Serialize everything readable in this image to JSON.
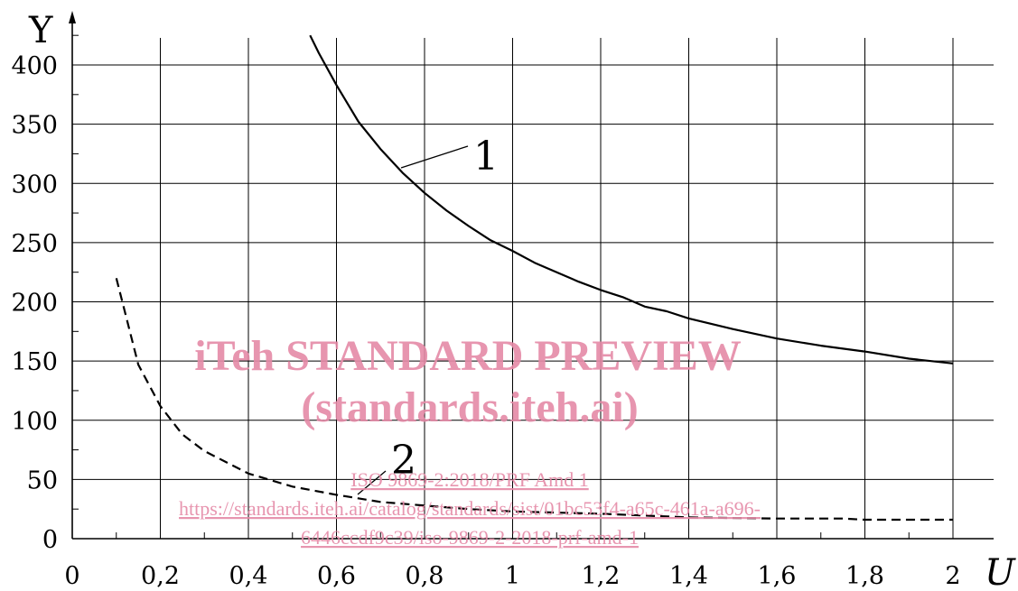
{
  "chart_data": {
    "type": "line",
    "xlabel": "U",
    "ylabel": "Y",
    "xlim": [
      0,
      2
    ],
    "ylim": [
      0,
      400
    ],
    "x_ticks": [
      "0",
      "0,2",
      "0,4",
      "0,6",
      "0,8",
      "1",
      "1,2",
      "1,4",
      "1,6",
      "1,8",
      "2"
    ],
    "y_ticks": [
      "0",
      "50",
      "100",
      "150",
      "200",
      "250",
      "300",
      "350",
      "400"
    ],
    "grid": true,
    "series": [
      {
        "name": "1",
        "style": "solid",
        "x": [
          0.54,
          0.56,
          0.6,
          0.65,
          0.7,
          0.75,
          0.8,
          0.85,
          0.9,
          0.95,
          1.0,
          1.05,
          1.1,
          1.15,
          1.2,
          1.25,
          1.3,
          1.35,
          1.4,
          1.5,
          1.6,
          1.7,
          1.8,
          1.9,
          2.0
        ],
        "y": [
          425,
          410,
          383,
          352,
          329,
          309,
          292,
          277,
          264,
          252,
          243,
          233,
          225,
          217,
          210,
          204,
          196,
          192,
          186,
          177,
          169,
          163,
          158,
          152,
          148
        ]
      },
      {
        "name": "2",
        "style": "dashed",
        "x": [
          0.1,
          0.15,
          0.2,
          0.25,
          0.3,
          0.4,
          0.5,
          0.6,
          0.7,
          0.8,
          0.9,
          1.0,
          1.2,
          1.4,
          1.6,
          1.75,
          1.8,
          2.0
        ],
        "y": [
          220,
          147,
          112,
          88,
          74,
          55,
          44,
          37,
          31,
          28,
          25,
          23,
          21,
          18,
          17,
          17,
          16,
          16
        ]
      }
    ]
  },
  "watermark": {
    "title": "iTeh STANDARD PREVIEW",
    "subtitle": "(standards.iteh.ai)",
    "doc_id": "ISO 9869-2:2018/PRF Amd 1",
    "url_line1": "https://standards.iteh.ai/catalog/standards/sist/01bc53f4-a65c-461a-a696-",
    "url_line2": "6446ccdf9c39/iso-9869-2-2018-prf-amd-1"
  }
}
